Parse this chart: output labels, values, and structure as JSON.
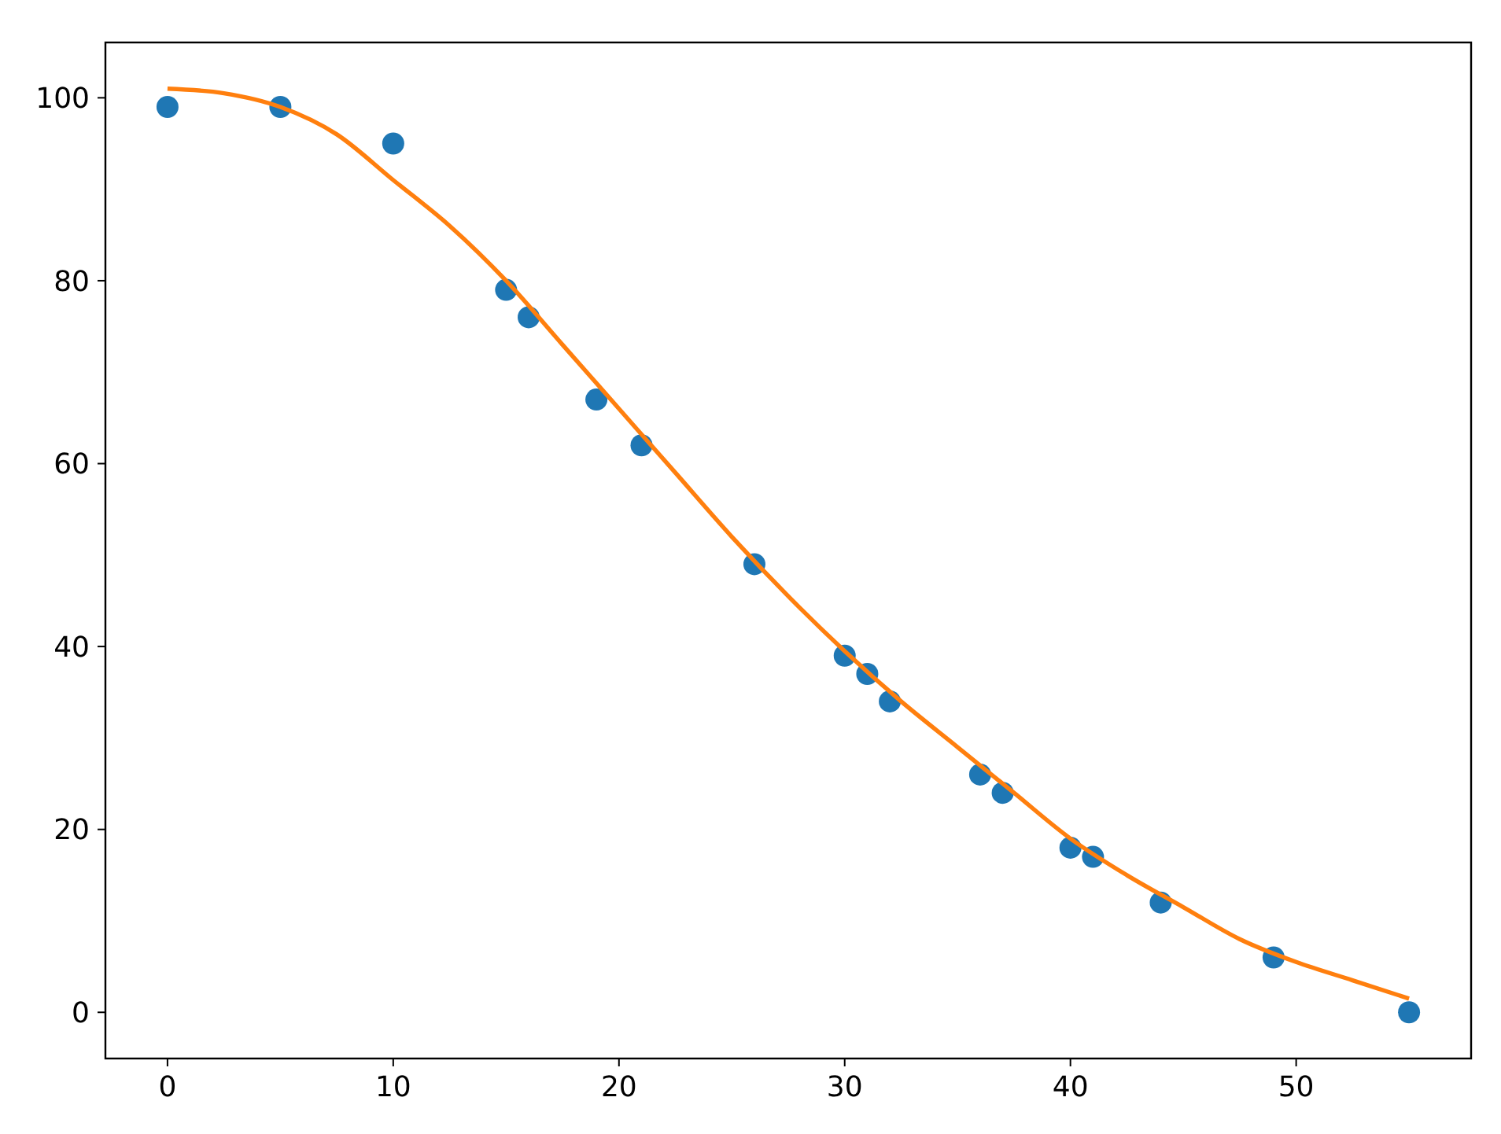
{
  "chart_data": {
    "type": "scatter",
    "series": [
      {
        "color": "#1f77b4",
        "marker": "circle",
        "x": [
          0,
          5,
          10,
          15,
          16,
          19,
          21,
          26,
          30,
          31,
          32,
          36,
          37,
          40,
          41,
          44,
          49,
          55
        ],
        "values": [
          99,
          99,
          95,
          79,
          76,
          67,
          62,
          49,
          39,
          37,
          34,
          26,
          24,
          18,
          17,
          12,
          6,
          0
        ]
      },
      {
        "type": "line",
        "color": "#ff7f0e",
        "marker": "none",
        "line_style": "solid",
        "x": [
          0,
          2.5,
          5,
          7.5,
          10,
          12.5,
          15,
          17.5,
          20,
          22.5,
          25,
          27.5,
          30,
          32.5,
          35,
          37.5,
          40,
          42.5,
          45,
          47.5,
          50,
          52.5,
          55
        ],
        "values": [
          101,
          100.5,
          99,
          96,
          91,
          86,
          80,
          73,
          66,
          59,
          52,
          45.5,
          39.5,
          34,
          29,
          24,
          19,
          15,
          11.5,
          8,
          5.5,
          3.5,
          1.5
        ]
      }
    ],
    "xlim": [
      -2.75,
      57.75
    ],
    "ylim": [
      -5.05,
      106.05
    ],
    "xticks": [
      0,
      10,
      20,
      30,
      40,
      50
    ],
    "yticks": [
      0,
      20,
      40,
      60,
      80,
      100
    ],
    "grid": false
  }
}
